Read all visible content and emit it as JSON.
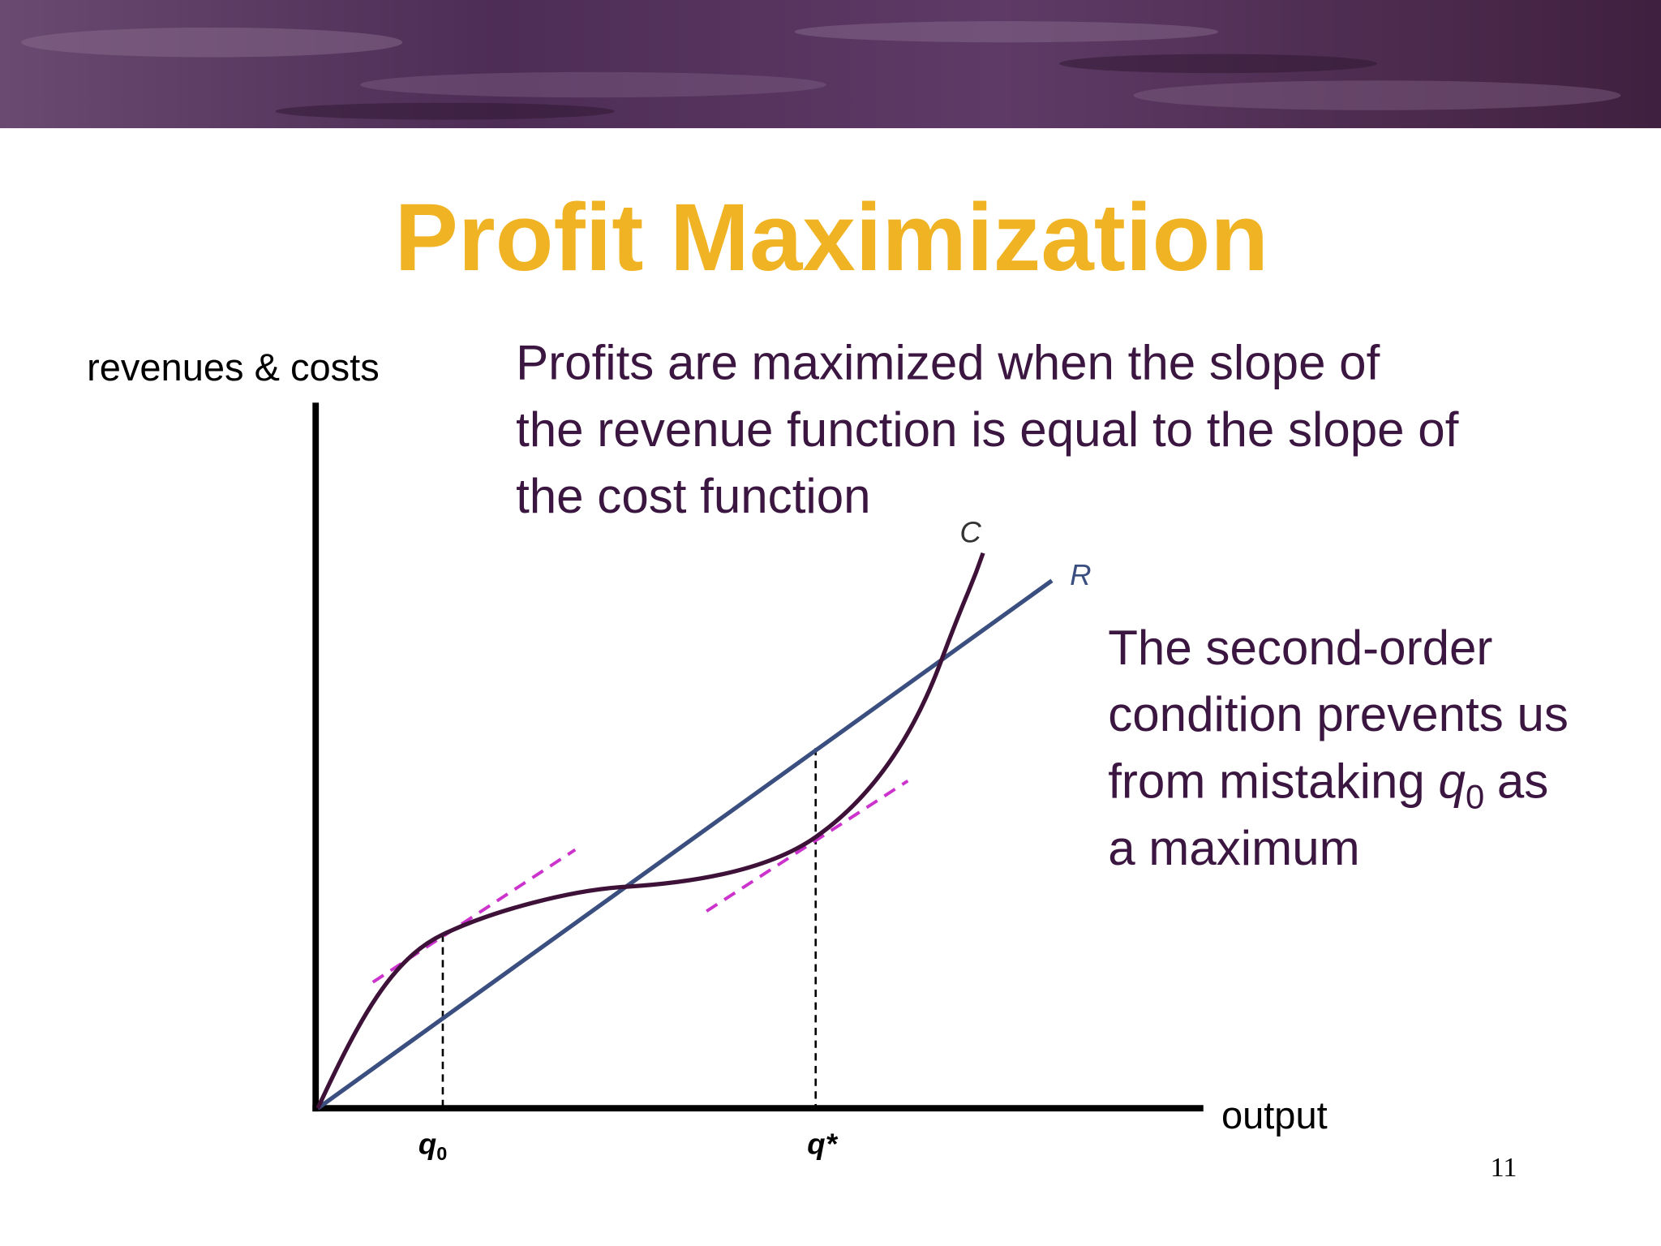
{
  "header": {
    "title": "Profit Maximization"
  },
  "diagram": {
    "y_axis_label": "revenues & costs",
    "x_axis_label": "output",
    "cost_curve_label": "C",
    "revenue_curve_label": "R",
    "q0_label": {
      "symbol": "q",
      "subscript": "0"
    },
    "qstar_label": "q*"
  },
  "statement": {
    "lines": [
      "Profits are maximized when the slope of",
      "the revenue function is equal to the slope of",
      "the cost function"
    ]
  },
  "note": {
    "line1": "The second-order",
    "line2": "condition prevents us",
    "line3_before": "from mistaking",
    "q_symbol": "q",
    "q_subscript": "0",
    "line3_after": "as",
    "line4": "a maximum"
  },
  "footer": {
    "page_number": "11"
  }
}
